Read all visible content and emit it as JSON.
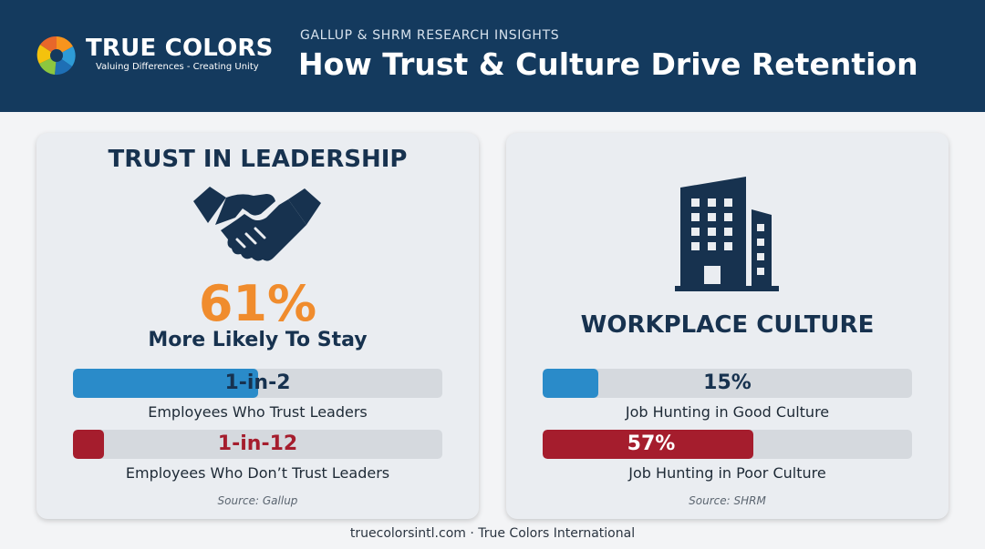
{
  "brand": {
    "name": "TRUE COLORS",
    "tagline": "Valuing Differences - Creating Unity"
  },
  "header": {
    "eyebrow": "GALLUP & SHRM RESEARCH INSIGHTS",
    "title": "How Trust & Culture Drive Retention"
  },
  "colors": {
    "navy": "#143a5e",
    "orange": "#f08c2d",
    "blue": "#2a8bc9",
    "red": "#a51d2d"
  },
  "trust": {
    "title": "TRUST IN LEADERSHIP",
    "icon": "handshake-icon",
    "stat": "61%",
    "stat_caption": "More Likely To Stay",
    "bars": [
      {
        "value": "1-in-2",
        "fraction": 0.5,
        "label": "Employees Who Trust Leaders"
      },
      {
        "value": "1-in-12",
        "fraction": 0.0833,
        "label": "Employees Who Don’t Trust Leaders"
      }
    ],
    "source": "Source: Gallup"
  },
  "culture": {
    "title": "WORKPLACE CULTURE",
    "icon": "office-building-icon",
    "bars": [
      {
        "value": "15%",
        "fraction": 0.15,
        "label": "Job Hunting in Good Culture"
      },
      {
        "value": "57%",
        "fraction": 0.57,
        "label": "Job Hunting in Poor Culture"
      }
    ],
    "source": "Source: SHRM"
  },
  "footer": {
    "text": "truecolorsintl.com · True Colors International"
  }
}
